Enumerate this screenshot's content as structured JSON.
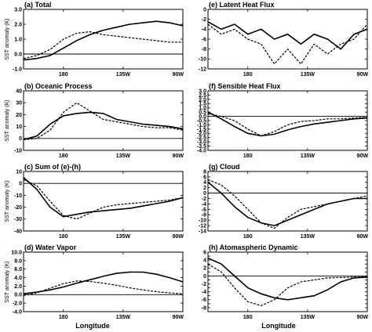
{
  "figure": {
    "xlabel": "Longitude",
    "x_ticks": [
      {
        "value": 180,
        "label": "180"
      },
      {
        "value": 225,
        "label": "135W"
      },
      {
        "value": 270,
        "label": "90W"
      }
    ],
    "xlim": [
      150,
      270
    ]
  },
  "chart_data": [
    {
      "id": "a",
      "title": "(a) Total",
      "type": "line",
      "ylabel": "SST anomaly (K)",
      "ylim": [
        -1,
        3
      ],
      "yticks": [
        -1,
        0,
        1,
        2,
        3
      ],
      "yticklabels": [
        "-1.0",
        "0.0",
        "1.0",
        "2.0",
        "3.0"
      ],
      "series": [
        {
          "style": "solid",
          "x": [
            150,
            160,
            170,
            180,
            190,
            200,
            210,
            220,
            230,
            240,
            250,
            260,
            270
          ],
          "y": [
            -0.4,
            -0.3,
            -0.1,
            0.4,
            0.9,
            1.3,
            1.6,
            1.8,
            2.0,
            2.1,
            2.2,
            2.1,
            1.9
          ]
        },
        {
          "style": "dashed",
          "x": [
            150,
            160,
            170,
            180,
            190,
            200,
            210,
            220,
            230,
            240,
            250,
            260,
            270
          ],
          "y": [
            -0.3,
            -0.1,
            0.3,
            1.0,
            1.4,
            1.5,
            1.3,
            1.2,
            1.1,
            1.0,
            0.9,
            0.8,
            0.8
          ]
        }
      ]
    },
    {
      "id": "b",
      "title": "(b) Oceanic Process",
      "type": "line",
      "ylabel": "SST anomaly (K)",
      "ylim": [
        -10,
        40
      ],
      "yticks": [
        -10,
        0,
        10,
        20,
        30,
        40
      ],
      "yticklabels": [
        "-10",
        "0",
        "10",
        "20",
        "30",
        "40"
      ],
      "series": [
        {
          "style": "solid",
          "x": [
            150,
            160,
            170,
            180,
            190,
            200,
            210,
            220,
            230,
            240,
            250,
            260,
            270
          ],
          "y": [
            -1,
            2,
            12,
            19,
            21,
            22,
            21,
            16,
            14,
            12,
            11,
            10,
            8
          ]
        },
        {
          "style": "dashed",
          "x": [
            150,
            160,
            170,
            180,
            190,
            200,
            210,
            220,
            230,
            240,
            250,
            260,
            270
          ],
          "y": [
            -1,
            0,
            7,
            22,
            30,
            23,
            16,
            14,
            12,
            10,
            9,
            9,
            7
          ]
        }
      ]
    },
    {
      "id": "c",
      "title": "(c) Sum of (e)-(h)",
      "type": "line",
      "ylabel": "SST anomaly (K)",
      "ylim": [
        -40,
        10
      ],
      "yticks": [
        -40,
        -30,
        -20,
        -10,
        0,
        10
      ],
      "yticklabels": [
        "-40",
        "-30",
        "-20",
        "-10",
        "0",
        "10"
      ],
      "series": [
        {
          "style": "solid",
          "x": [
            150,
            160,
            170,
            180,
            190,
            200,
            210,
            220,
            230,
            240,
            250,
            260,
            270
          ],
          "y": [
            5,
            -5,
            -20,
            -28,
            -26,
            -24,
            -23,
            -22,
            -21,
            -19,
            -17,
            -15,
            -12
          ]
        },
        {
          "style": "dashed",
          "x": [
            150,
            160,
            170,
            180,
            190,
            200,
            210,
            220,
            230,
            240,
            250,
            260,
            270
          ],
          "y": [
            3,
            -2,
            -15,
            -27,
            -30,
            -25,
            -20,
            -18,
            -17,
            -16,
            -15,
            -14,
            -12
          ]
        }
      ]
    },
    {
      "id": "d",
      "title": "(d) Water Vapor",
      "type": "line",
      "ylabel": "SST anomaly (K)",
      "ylim": [
        -4,
        10
      ],
      "yticks": [
        -4,
        -2,
        0,
        2,
        4,
        6,
        8,
        10
      ],
      "yticklabels": [
        "-4.0",
        "-2.0",
        "0.0",
        "2.0",
        "4.0",
        "6.0",
        "8.0",
        "10.0"
      ],
      "series": [
        {
          "style": "solid",
          "x": [
            150,
            160,
            170,
            180,
            190,
            200,
            210,
            220,
            230,
            240,
            250,
            260,
            270
          ],
          "y": [
            0.2,
            0.6,
            1.1,
            1.8,
            2.7,
            3.5,
            4.3,
            5.0,
            5.3,
            5.3,
            4.8,
            4.0,
            3.0
          ]
        },
        {
          "style": "dashed",
          "x": [
            150,
            160,
            170,
            180,
            190,
            200,
            210,
            220,
            230,
            240,
            250,
            260,
            270
          ],
          "y": [
            -0.2,
            0.4,
            1.5,
            2.6,
            3.2,
            3.1,
            2.7,
            2.2,
            1.6,
            1.1,
            0.7,
            0.4,
            0.2
          ]
        }
      ]
    },
    {
      "id": "e",
      "title": "(e) Latent Heat Flux",
      "type": "line",
      "ylabel": "",
      "ylim": [
        -12,
        0
      ],
      "yticks": [
        -12,
        -10,
        -8,
        -6,
        -4,
        -2,
        0
      ],
      "yticklabels": [
        "-12",
        "-10",
        "-8",
        "-6",
        "-4",
        "-2",
        "0"
      ],
      "series": [
        {
          "style": "solid",
          "x": [
            150,
            160,
            170,
            180,
            190,
            200,
            210,
            220,
            230,
            240,
            250,
            260,
            270
          ],
          "y": [
            -2.5,
            -4,
            -3,
            -5,
            -4,
            -6,
            -5,
            -7,
            -5,
            -6,
            -8,
            -5,
            -4
          ]
        },
        {
          "style": "dashed",
          "x": [
            150,
            160,
            170,
            180,
            190,
            200,
            210,
            220,
            230,
            240,
            250,
            260,
            270
          ],
          "y": [
            -3,
            -5,
            -4,
            -6,
            -7,
            -11,
            -8,
            -11,
            -7,
            -9,
            -7,
            -6,
            -3
          ]
        }
      ]
    },
    {
      "id": "f",
      "title": "(f) Sensible Heat Flux",
      "type": "line",
      "ylabel": "",
      "ylim": [
        -4,
        3
      ],
      "yticks": [
        -4,
        -3.5,
        -3,
        -2.5,
        -2,
        -1.5,
        -1,
        -0.5,
        0,
        0.5,
        1,
        1.5,
        2,
        2.5,
        3
      ],
      "yticklabels": [
        "-4.0",
        "-3.5",
        "-3.0",
        "-2.5",
        "-2.0",
        "-1.5",
        "-1.0",
        "-0.5",
        "0.0",
        "0.5",
        "1.0",
        "1.5",
        "2.0",
        "2.5",
        "3.0"
      ],
      "series": [
        {
          "style": "solid",
          "x": [
            150,
            160,
            170,
            180,
            190,
            200,
            210,
            220,
            230,
            240,
            250,
            260,
            270
          ],
          "y": [
            0.5,
            -0.3,
            -1.2,
            -2.0,
            -2.3,
            -2.1,
            -1.6,
            -1.2,
            -0.9,
            -0.7,
            -0.5,
            -0.3,
            -0.2
          ]
        },
        {
          "style": "dashed",
          "x": [
            150,
            160,
            170,
            180,
            190,
            200,
            210,
            220,
            230,
            240,
            250,
            260,
            270
          ],
          "y": [
            0.3,
            0.0,
            -0.5,
            -1.5,
            -2.3,
            -1.8,
            -1.0,
            -0.6,
            -0.5,
            -0.3,
            -0.3,
            -0.2,
            -0.1
          ]
        }
      ]
    },
    {
      "id": "g",
      "title": "(g) Cloud",
      "type": "line",
      "ylabel": "",
      "ylim": [
        -14,
        8
      ],
      "yticks": [
        -14,
        -12,
        -10,
        -8,
        -6,
        -4,
        -2,
        0,
        2,
        4,
        6,
        8
      ],
      "yticklabels": [
        "-14",
        "-12",
        "-10",
        "-8",
        "-6",
        "-4",
        "-2",
        "0",
        "2",
        "4",
        "6",
        "8"
      ],
      "series": [
        {
          "style": "solid",
          "x": [
            150,
            160,
            170,
            180,
            190,
            200,
            210,
            220,
            230,
            240,
            250,
            260,
            270
          ],
          "y": [
            4,
            0,
            -5,
            -9,
            -11,
            -12,
            -10,
            -8,
            -6,
            -4,
            -3,
            -2,
            -2
          ]
        },
        {
          "style": "dashed",
          "x": [
            150,
            160,
            170,
            180,
            190,
            200,
            210,
            220,
            230,
            240,
            250,
            260,
            270
          ],
          "y": [
            5,
            3,
            -1,
            -6,
            -11,
            -13,
            -9,
            -6,
            -5,
            -4,
            -3,
            -2,
            -1
          ]
        }
      ]
    },
    {
      "id": "h",
      "title": "(h) Atomaspheric Dynamic",
      "type": "line",
      "ylabel": "",
      "ylim": [
        -9,
        6
      ],
      "yticks": [
        -9,
        -8,
        -7,
        -6,
        -5,
        -4,
        -3,
        -2,
        -1,
        0,
        1,
        2,
        3,
        4,
        5,
        6
      ],
      "yticklabels": [
        "",
        "-8",
        "",
        "-6",
        "",
        "-4",
        "",
        "-2",
        "",
        "0",
        "",
        "2",
        "",
        "4",
        "",
        "6"
      ],
      "series": [
        {
          "style": "solid",
          "x": [
            150,
            160,
            170,
            180,
            190,
            200,
            210,
            220,
            230,
            240,
            250,
            260,
            270
          ],
          "y": [
            4.5,
            3,
            0,
            -3,
            -4.5,
            -5.5,
            -6,
            -5.5,
            -5,
            -3.5,
            -1.5,
            -0.5,
            -0.3
          ]
        },
        {
          "style": "dashed",
          "x": [
            150,
            160,
            170,
            180,
            190,
            200,
            210,
            220,
            230,
            240,
            250,
            260,
            270
          ],
          "y": [
            3,
            1,
            -3,
            -6.5,
            -7.5,
            -6,
            -3,
            -1.5,
            -1,
            -0.5,
            -0.4,
            -0.3,
            -0.2
          ]
        }
      ]
    }
  ]
}
